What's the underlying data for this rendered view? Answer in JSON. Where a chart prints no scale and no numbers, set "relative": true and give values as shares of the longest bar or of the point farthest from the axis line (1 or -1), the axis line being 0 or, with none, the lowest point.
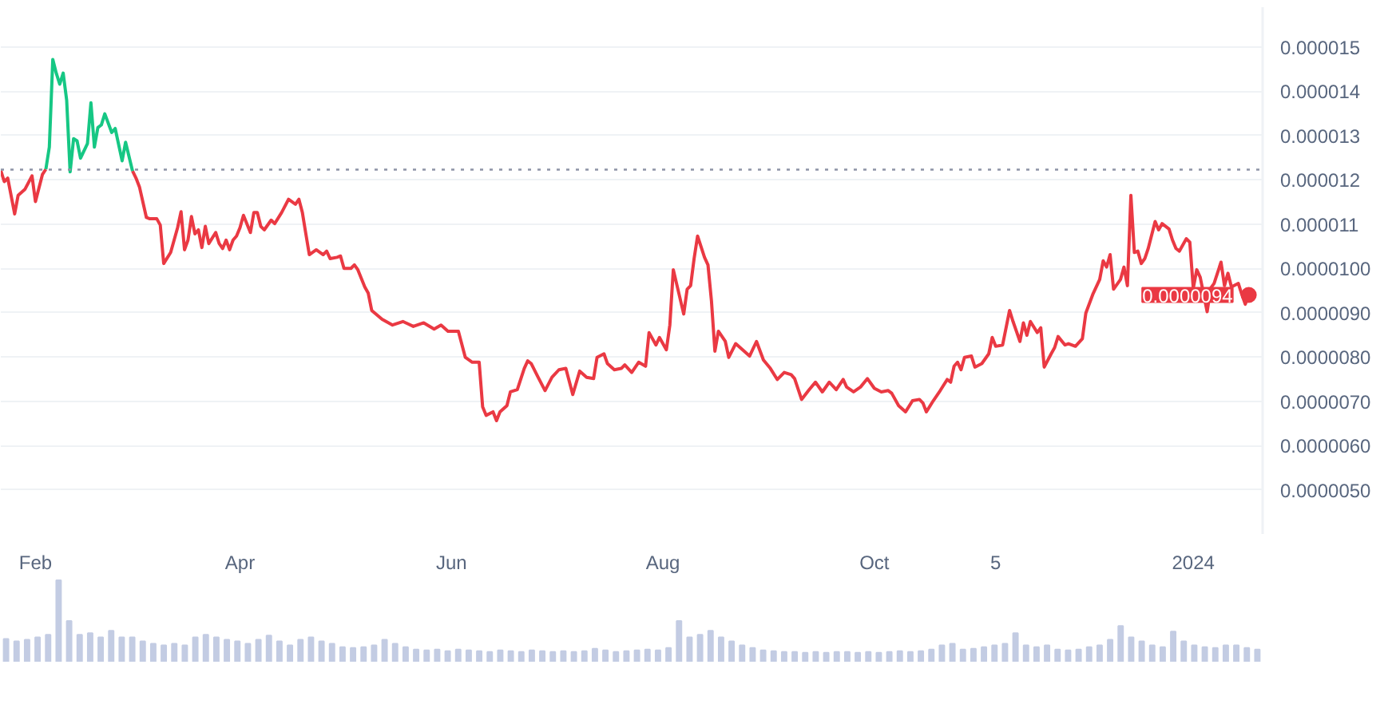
{
  "chart_data": [
    {
      "type": "line",
      "xlim": [
        "2023-01-22",
        "2024-01-21"
      ],
      "ylim": [
        4e-06,
        1.59e-05
      ],
      "xticks": [
        {
          "value": "2023-02-01",
          "label": "Feb"
        },
        {
          "value": "2023-04-01",
          "label": "Apr"
        },
        {
          "value": "2023-06-01",
          "label": "Jun"
        },
        {
          "value": "2023-08-01",
          "label": "Aug"
        },
        {
          "value": "2023-10-01",
          "label": "Oct"
        },
        {
          "value": "2023-11-05",
          "label": "5"
        },
        {
          "value": "2024-01-01",
          "label": "2024"
        }
      ],
      "yticks": [
        {
          "value": 5e-06,
          "label": "0.0000050"
        },
        {
          "value": 6e-06,
          "label": "0.0000060"
        },
        {
          "value": 7e-06,
          "label": "0.0000070"
        },
        {
          "value": 8e-06,
          "label": "0.0000080"
        },
        {
          "value": 9e-06,
          "label": "0.0000090"
        },
        {
          "value": 1e-05,
          "label": "0.0000100"
        },
        {
          "value": 1.1e-05,
          "label": "0.000011"
        },
        {
          "value": 1.2e-05,
          "label": "0.000012"
        },
        {
          "value": 1.3e-05,
          "label": "0.000013"
        },
        {
          "value": 1.4e-05,
          "label": "0.000014"
        },
        {
          "value": 1.5e-05,
          "label": "0.000015"
        }
      ],
      "grid": "y",
      "line_style": "solid",
      "ref_lines": [
        {
          "axis": "y",
          "value": 1.223e-05,
          "color": "#8d93a6",
          "line_style": "dotted"
        }
      ],
      "annotations": [
        {
          "text": "0.0000094",
          "x": "2024-01-17",
          "y": 9.4e-06
        }
      ],
      "series": [
        {
          "color": "#ea3943",
          "x": [
            "2023-01-22",
            "2023-01-23",
            "2023-01-24",
            "2023-01-26",
            "2023-01-27",
            "2023-01-29",
            "2023-01-31",
            "2023-02-01",
            "2023-02-03",
            "2023-02-04",
            "2023-02-15",
            "2023-03-01",
            "2023-03-02",
            "2023-03-03",
            "2023-03-05",
            "2023-03-06",
            "2023-03-08",
            "2023-03-09",
            "2023-03-10",
            "2023-03-12",
            "2023-03-14",
            "2023-03-15",
            "2023-03-16",
            "2023-03-17",
            "2023-03-18",
            "2023-03-19",
            "2023-03-20",
            "2023-03-21",
            "2023-03-22",
            "2023-03-23",
            "2023-03-25",
            "2023-03-26",
            "2023-03-27",
            "2023-03-28",
            "2023-03-29",
            "2023-03-30",
            "2023-03-31",
            "2023-04-01",
            "2023-04-02",
            "2023-04-04",
            "2023-04-05",
            "2023-04-06",
            "2023-04-07",
            "2023-04-08",
            "2023-04-10",
            "2023-04-11",
            "2023-04-13",
            "2023-04-15",
            "2023-04-17",
            "2023-04-18",
            "2023-04-19",
            "2023-04-20",
            "2023-04-21",
            "2023-04-23",
            "2023-04-25",
            "2023-04-26",
            "2023-04-27",
            "2023-04-29",
            "2023-04-30",
            "2023-05-01",
            "2023-05-03",
            "2023-05-04",
            "2023-05-05",
            "2023-05-07",
            "2023-05-08",
            "2023-05-09",
            "2023-05-12",
            "2023-05-15",
            "2023-05-18",
            "2023-05-21",
            "2023-05-24",
            "2023-05-27",
            "2023-05-29",
            "2023-05-31",
            "2023-06-03",
            "2023-06-05",
            "2023-06-07",
            "2023-06-09",
            "2023-06-10",
            "2023-06-11",
            "2023-06-13",
            "2023-06-14",
            "2023-06-15",
            "2023-06-17",
            "2023-06-18",
            "2023-06-20",
            "2023-06-22",
            "2023-06-23",
            "2023-06-24",
            "2023-06-26",
            "2023-06-28",
            "2023-06-30",
            "2023-07-02",
            "2023-07-04",
            "2023-07-06",
            "2023-07-08",
            "2023-07-10",
            "2023-07-12",
            "2023-07-13",
            "2023-07-15",
            "2023-07-16",
            "2023-07-18",
            "2023-07-20",
            "2023-07-21",
            "2023-07-23",
            "2023-07-25",
            "2023-07-27",
            "2023-07-28",
            "2023-07-30",
            "2023-07-31",
            "2023-08-02",
            "2023-08-03",
            "2023-08-04",
            "2023-08-07",
            "2023-08-08",
            "2023-08-09",
            "2023-08-10",
            "2023-08-11",
            "2023-08-13",
            "2023-08-14",
            "2023-08-15",
            "2023-08-16",
            "2023-08-17",
            "2023-08-19",
            "2023-08-20",
            "2023-08-22",
            "2023-08-24",
            "2023-08-26",
            "2023-08-28",
            "2023-08-30",
            "2023-09-01",
            "2023-09-03",
            "2023-09-05",
            "2023-09-07",
            "2023-09-08",
            "2023-09-10",
            "2023-09-12",
            "2023-09-14",
            "2023-09-16",
            "2023-09-18",
            "2023-09-20",
            "2023-09-22",
            "2023-09-23",
            "2023-09-25",
            "2023-09-27",
            "2023-09-29",
            "2023-10-01",
            "2023-10-03",
            "2023-10-05",
            "2023-10-06",
            "2023-10-08",
            "2023-10-10",
            "2023-10-12",
            "2023-10-14",
            "2023-10-15",
            "2023-10-16",
            "2023-10-18",
            "2023-10-20",
            "2023-10-22",
            "2023-10-23",
            "2023-10-24",
            "2023-10-25",
            "2023-10-26",
            "2023-10-27",
            "2023-10-29",
            "2023-10-30",
            "2023-11-01",
            "2023-11-03",
            "2023-11-04",
            "2023-11-05",
            "2023-11-07",
            "2023-11-09",
            "2023-11-10",
            "2023-11-12",
            "2023-11-13",
            "2023-11-14",
            "2023-11-15",
            "2023-11-17",
            "2023-11-18",
            "2023-11-19",
            "2023-11-21",
            "2023-11-22",
            "2023-11-23",
            "2023-11-25",
            "2023-11-26",
            "2023-11-28",
            "2023-11-30",
            "2023-12-01",
            "2023-12-03",
            "2023-12-05",
            "2023-12-06",
            "2023-12-07",
            "2023-12-08",
            "2023-12-09",
            "2023-12-11",
            "2023-12-12",
            "2023-12-13",
            "2023-12-14",
            "2023-12-15",
            "2023-12-16",
            "2023-12-17",
            "2023-12-18",
            "2023-12-19",
            "2023-12-21",
            "2023-12-22",
            "2023-12-23",
            "2023-12-25",
            "2023-12-26",
            "2023-12-27",
            "2023-12-28",
            "2023-12-30",
            "2023-12-31",
            "2024-01-01",
            "2024-01-02",
            "2024-01-03",
            "2024-01-05",
            "2024-01-06",
            "2024-01-07",
            "2024-01-09",
            "2024-01-10",
            "2024-01-11",
            "2024-01-12",
            "2024-01-14",
            "2024-01-15",
            "2024-01-16",
            "2024-01-17"
          ],
          "values": [
            1.221e-05,
            1.196e-05,
            1.204e-05,
            1.123e-05,
            1.165e-05,
            1.179e-05,
            1.209e-05,
            1.151e-05,
            1.212e-05,
            1.224e-05,
            null,
            1.22e-05,
            1.204e-05,
            1.184e-05,
            1.115e-05,
            1.112e-05,
            1.112e-05,
            1.098e-05,
            1.011e-05,
            1.036e-05,
            1.092e-05,
            1.128e-05,
            1.042e-05,
            1.064e-05,
            1.117e-05,
            1.078e-05,
            1.087e-05,
            1.047e-05,
            1.095e-05,
            1.056e-05,
            1.081e-05,
            1.056e-05,
            1.045e-05,
            1.064e-05,
            1.042e-05,
            1.064e-05,
            1.073e-05,
            1.092e-05,
            1.12e-05,
            1.081e-05,
            1.126e-05,
            1.126e-05,
            1.095e-05,
            1.087e-05,
            1.109e-05,
            1.101e-05,
            1.126e-05,
            1.156e-05,
            1.145e-05,
            1.156e-05,
            1.126e-05,
            1.078e-05,
            1.031e-05,
            1.042e-05,
            1.031e-05,
            1.039e-05,
            1.022e-05,
            1.025e-05,
            1.028e-05,
            1e-05,
            1e-05,
            1.008e-05,
            9.97e-06,
            9.58e-06,
            9.44e-06,
            9.05e-06,
            8.85e-06,
            8.72e-06,
            8.8e-06,
            8.69e-06,
            8.77e-06,
            8.63e-06,
            8.72e-06,
            8.58e-06,
            8.58e-06,
            7.99e-06,
            7.88e-06,
            7.88e-06,
            6.87e-06,
            6.68e-06,
            6.76e-06,
            6.56e-06,
            6.76e-06,
            6.9e-06,
            7.21e-06,
            7.26e-06,
            7.74e-06,
            7.91e-06,
            7.85e-06,
            7.54e-06,
            7.24e-06,
            7.54e-06,
            7.71e-06,
            7.74e-06,
            7.15e-06,
            7.68e-06,
            7.54e-06,
            7.51e-06,
            7.99e-06,
            8.07e-06,
            7.85e-06,
            7.71e-06,
            7.74e-06,
            7.82e-06,
            7.65e-06,
            7.88e-06,
            7.79e-06,
            8.55e-06,
            8.27e-06,
            8.44e-06,
            8.16e-06,
            8.72e-06,
            9.97e-06,
            8.97e-06,
            9.53e-06,
            9.61e-06,
            1.022e-05,
            1.073e-05,
            1.025e-05,
            1.008e-05,
            9.27e-06,
            8.13e-06,
            8.58e-06,
            8.35e-06,
            7.99e-06,
            8.3e-06,
            8.16e-06,
            8.02e-06,
            8.35e-06,
            7.93e-06,
            7.74e-06,
            7.49e-06,
            7.65e-06,
            7.6e-06,
            7.51e-06,
            7.04e-06,
            7.24e-06,
            7.43e-06,
            7.21e-06,
            7.43e-06,
            7.26e-06,
            7.49e-06,
            7.32e-06,
            7.21e-06,
            7.32e-06,
            7.51e-06,
            7.29e-06,
            7.21e-06,
            7.24e-06,
            7.18e-06,
            6.9e-06,
            6.76e-06,
            7.01e-06,
            7.04e-06,
            6.96e-06,
            6.76e-06,
            7.01e-06,
            7.24e-06,
            7.49e-06,
            7.43e-06,
            7.79e-06,
            7.88e-06,
            7.71e-06,
            7.99e-06,
            8.02e-06,
            7.77e-06,
            7.85e-06,
            8.07e-06,
            8.44e-06,
            8.24e-06,
            8.27e-06,
            9.05e-06,
            8.8e-06,
            8.35e-06,
            8.77e-06,
            8.49e-06,
            8.8e-06,
            8.55e-06,
            8.66e-06,
            7.77e-06,
            8.07e-06,
            8.21e-06,
            8.46e-06,
            8.27e-06,
            8.3e-06,
            8.24e-06,
            8.41e-06,
            8.99e-06,
            9.41e-06,
            9.75e-06,
            1.017e-05,
            1.003e-05,
            1.031e-05,
            9.53e-06,
            9.75e-06,
            1.003e-05,
            9.61e-06,
            1.165e-05,
            1.036e-05,
            1.039e-05,
            1.011e-05,
            1.022e-05,
            1.045e-05,
            1.106e-05,
            1.087e-05,
            1.101e-05,
            1.089e-05,
            1.064e-05,
            1.045e-05,
            1.039e-05,
            1.067e-05,
            1.059e-05,
            9.55e-06,
            9.97e-06,
            9.8e-06,
            9.02e-06,
            9.55e-06,
            9.66e-06,
            1.014e-05,
            9.61e-06,
            9.89e-06,
            9.58e-06,
            9.66e-06,
            9.41e-06,
            9.19e-06,
            9.4e-06
          ]
        },
        {
          "color": "#16c784",
          "x": [
            "2023-02-04",
            "2023-02-05",
            "2023-02-06",
            "2023-02-07",
            "2023-02-08",
            "2023-02-09",
            "2023-02-10",
            "2023-02-11",
            "2023-02-12",
            "2023-02-13",
            "2023-02-14",
            "2023-02-16",
            "2023-02-17",
            "2023-02-18",
            "2023-02-19",
            "2023-02-20",
            "2023-02-21",
            "2023-02-23",
            "2023-02-24",
            "2023-02-26",
            "2023-02-27",
            "2023-03-01"
          ],
          "values": [
            1.224e-05,
            1.274e-05,
            1.472e-05,
            1.441e-05,
            1.416e-05,
            1.441e-05,
            1.38e-05,
            1.218e-05,
            1.293e-05,
            1.288e-05,
            1.249e-05,
            1.282e-05,
            1.374e-05,
            1.274e-05,
            1.318e-05,
            1.324e-05,
            1.349e-05,
            1.307e-05,
            1.316e-05,
            1.243e-05,
            1.285e-05,
            1.22e-05
          ]
        }
      ]
    },
    {
      "type": "bar",
      "relative": true,
      "color": "#c3cce3",
      "tick_labels": false,
      "categories": [
        null,
        null,
        null,
        null,
        null,
        null,
        null,
        null,
        null,
        null,
        null,
        null,
        null,
        null,
        null,
        null,
        null,
        null,
        null,
        null,
        null,
        null,
        null,
        null,
        null,
        null,
        null,
        null,
        null,
        null,
        null,
        null,
        null,
        null,
        null,
        null,
        null,
        null,
        null,
        null,
        null,
        null,
        null,
        null,
        null,
        null,
        null,
        null,
        null,
        null,
        null,
        null,
        null,
        null,
        null,
        null,
        null,
        null,
        null,
        null,
        null,
        null,
        null,
        null,
        null,
        null,
        null,
        null,
        null,
        null,
        null,
        null,
        null,
        null,
        null,
        null,
        null,
        null,
        null,
        null,
        null,
        null,
        null,
        null,
        null,
        null,
        null,
        null,
        null,
        null,
        null,
        null,
        null,
        null,
        null,
        null,
        null,
        null,
        null,
        null,
        null,
        null,
        null,
        null,
        null,
        null,
        null,
        null,
        null,
        null,
        null,
        null,
        null,
        null,
        null,
        null,
        null,
        null,
        null,
        null
      ],
      "values": [
        0.28,
        0.25,
        0.27,
        0.3,
        0.33,
        1.0,
        0.5,
        0.33,
        0.35,
        0.3,
        0.38,
        0.3,
        0.3,
        0.25,
        0.22,
        0.2,
        0.22,
        0.2,
        0.3,
        0.33,
        0.3,
        0.27,
        0.25,
        0.22,
        0.27,
        0.32,
        0.25,
        0.2,
        0.27,
        0.3,
        0.25,
        0.22,
        0.18,
        0.17,
        0.18,
        0.2,
        0.27,
        0.22,
        0.18,
        0.15,
        0.14,
        0.15,
        0.13,
        0.15,
        0.14,
        0.13,
        0.12,
        0.14,
        0.13,
        0.12,
        0.14,
        0.13,
        0.12,
        0.13,
        0.12,
        0.13,
        0.16,
        0.14,
        0.12,
        0.13,
        0.14,
        0.15,
        0.14,
        0.17,
        0.5,
        0.3,
        0.33,
        0.38,
        0.3,
        0.25,
        0.2,
        0.17,
        0.14,
        0.13,
        0.12,
        0.12,
        0.11,
        0.12,
        0.11,
        0.12,
        0.12,
        0.11,
        0.12,
        0.11,
        0.12,
        0.13,
        0.12,
        0.13,
        0.15,
        0.2,
        0.22,
        0.15,
        0.16,
        0.18,
        0.2,
        0.22,
        0.35,
        0.2,
        0.18,
        0.2,
        0.15,
        0.14,
        0.15,
        0.18,
        0.2,
        0.27,
        0.44,
        0.3,
        0.25,
        0.2,
        0.18,
        0.37,
        0.25,
        0.2,
        0.18,
        0.17,
        0.2,
        0.2,
        0.17,
        0.15
      ]
    }
  ]
}
